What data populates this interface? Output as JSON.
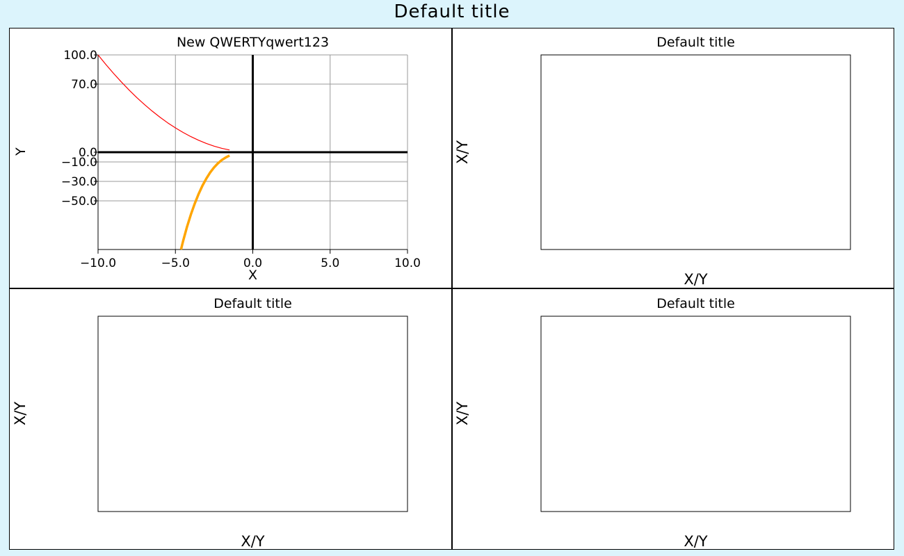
{
  "figure": {
    "title": "Default title",
    "colors": {
      "background": "#dcf4fc",
      "panel": "#ffffff"
    }
  },
  "chart_data": [
    {
      "type": "line",
      "title": "New QWERTYqwert123",
      "xlabel": "X",
      "ylabel": "Y",
      "xlim": [
        -10,
        10
      ],
      "ylim": [
        -100,
        100
      ],
      "xticks": [
        -10,
        -5,
        0,
        5,
        10
      ],
      "xtick_labels": [
        "−10.0",
        "−5.0",
        "0.0",
        "5.0",
        "10.0"
      ],
      "yticks": [
        100,
        70,
        0,
        -10,
        -30,
        -50
      ],
      "ytick_labels": [
        "100.0",
        "70.0",
        "0.0",
        "−10.0",
        "−30.0",
        "−50.0"
      ],
      "grid": true,
      "series": [
        {
          "color": "#ff0000",
          "width": 1.2,
          "x": [
            -10,
            -9.5,
            -9,
            -8.5,
            -8,
            -7.5,
            -7,
            -6.5,
            -6,
            -5.5,
            -5,
            -4.5,
            -4,
            -3.5,
            -3,
            -2.5,
            -2,
            -1.5
          ],
          "y": [
            100,
            90.25,
            81,
            72.25,
            64,
            56.25,
            49,
            42.25,
            36,
            30.25,
            25,
            20.25,
            16,
            12.25,
            9,
            6.25,
            4,
            2.25
          ]
        },
        {
          "color": "#ffa500",
          "width": 3.5,
          "x": [
            -4.64,
            -4.5,
            -4.25,
            -4,
            -3.75,
            -3.5,
            -3.25,
            -3,
            -2.75,
            -2.5,
            -2.25,
            -2,
            -1.75,
            -1.5
          ],
          "y": [
            -100,
            -91.1,
            -76.8,
            -64,
            -52.7,
            -42.9,
            -34.3,
            -27,
            -20.8,
            -15.6,
            -11.4,
            -8,
            -5.4,
            -3.4
          ]
        }
      ]
    },
    {
      "type": "line",
      "title": "Default title",
      "xlabel": "X/Y",
      "ylabel": "X/Y",
      "series": []
    },
    {
      "type": "line",
      "title": "Default title",
      "xlabel": "X/Y",
      "ylabel": "X/Y",
      "series": []
    },
    {
      "type": "line",
      "title": "Default title",
      "xlabel": "X/Y",
      "ylabel": "X/Y",
      "series": []
    }
  ]
}
